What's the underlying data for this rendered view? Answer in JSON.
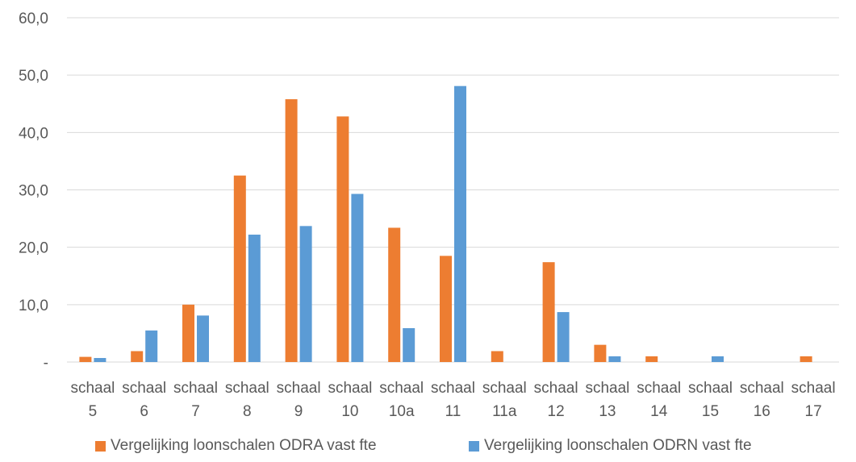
{
  "chart_data": {
    "type": "bar",
    "categories": [
      [
        "schaal",
        "5"
      ],
      [
        "schaal",
        "6"
      ],
      [
        "schaal",
        "7"
      ],
      [
        "schaal",
        "8"
      ],
      [
        "schaal",
        "9"
      ],
      [
        "schaal",
        "10"
      ],
      [
        "schaal",
        "10a"
      ],
      [
        "schaal",
        "11"
      ],
      [
        "schaal",
        "11a"
      ],
      [
        "schaal",
        "12"
      ],
      [
        "schaal",
        "13"
      ],
      [
        "schaal",
        "14"
      ],
      [
        "schaal",
        "15"
      ],
      [
        "schaal",
        "16"
      ],
      [
        "schaal",
        "17"
      ]
    ],
    "series": [
      {
        "name": "Vergelijking loonschalen ODRA vast fte",
        "color": "#ED7D31",
        "values": [
          0.9,
          1.9,
          10.0,
          32.5,
          45.8,
          42.8,
          23.4,
          18.5,
          1.9,
          17.4,
          3.0,
          1.0,
          0,
          0,
          1.0
        ]
      },
      {
        "name": "Vergelijking loonschalen ODRN vast fte",
        "color": "#5B9BD5",
        "values": [
          0.7,
          5.5,
          8.1,
          22.2,
          23.7,
          29.3,
          5.9,
          48.1,
          0,
          8.7,
          1.0,
          0,
          1.0,
          0,
          0
        ]
      }
    ],
    "y_ticks": [
      "-",
      "10,0",
      "20,0",
      "30,0",
      "40,0",
      "50,0",
      "60,0"
    ],
    "ylim": [
      0,
      60
    ],
    "grid": true,
    "legend_position": "bottom",
    "title": "",
    "xlabel": "",
    "ylabel": ""
  }
}
